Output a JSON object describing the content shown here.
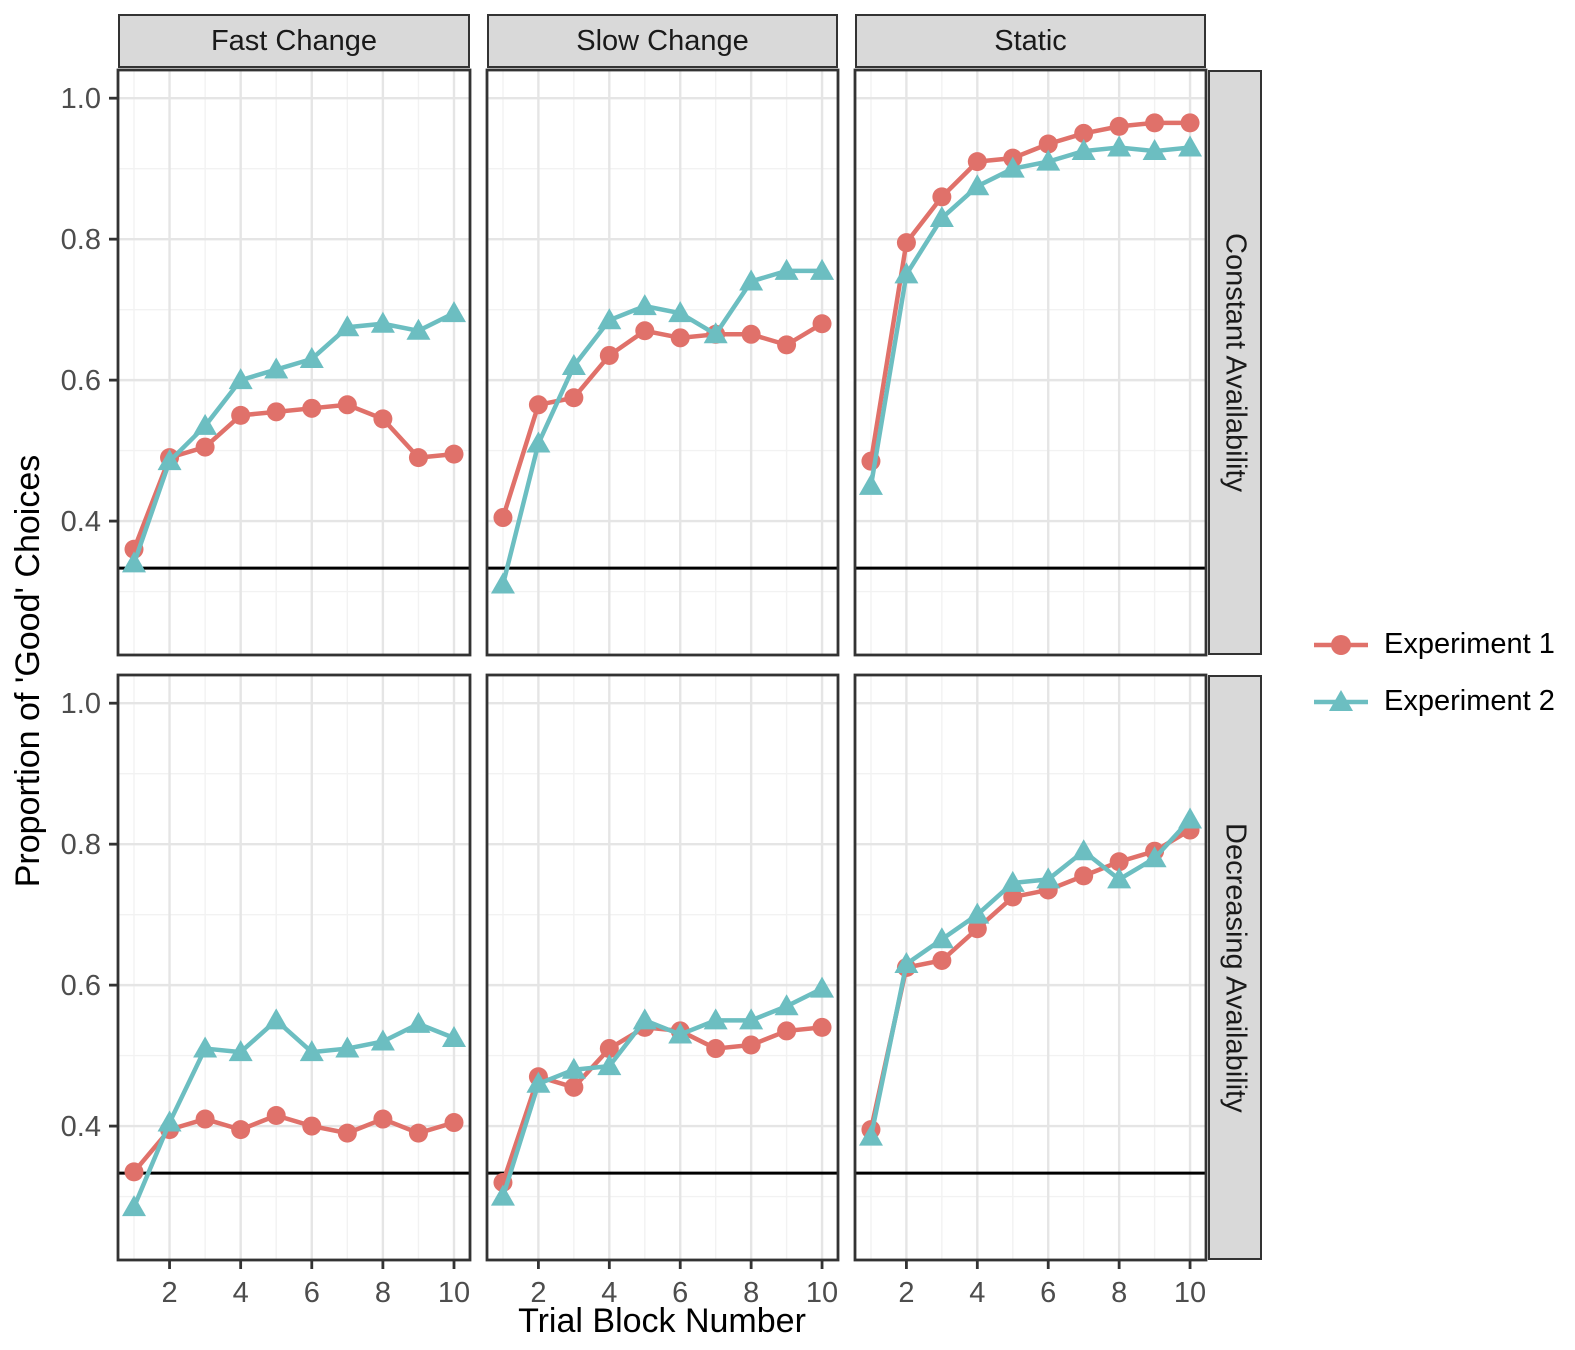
{
  "chart_data": {
    "type": "line",
    "title": "",
    "xlabel": "Trial Block Number",
    "ylabel": "Proportion of 'Good' Choices",
    "x": [
      1,
      2,
      3,
      4,
      5,
      6,
      7,
      8,
      9,
      10
    ],
    "xlim": [
      0.55,
      10.45
    ],
    "ylim": [
      0.21,
      1.04
    ],
    "x_major_ticks": [
      2,
      4,
      6,
      8,
      10
    ],
    "x_tick_labels": [
      "2",
      "4",
      "6",
      "8",
      "10"
    ],
    "x_minor_gridlines": [
      1,
      3,
      5,
      7,
      9
    ],
    "y_major_ticks": [
      1.0,
      0.8,
      0.6,
      0.4
    ],
    "y_tick_labels": [
      "1.0",
      "0.8",
      "0.6",
      "0.4"
    ],
    "y_minor_gridlines": [
      0.9,
      0.7,
      0.5,
      0.3
    ],
    "grid": true,
    "reference_line_y": 0.3333,
    "reference_line_color": "#000000",
    "legend_position": "right",
    "facet_columns": [
      "Fast Change",
      "Slow Change",
      "Static"
    ],
    "facet_rows": [
      "Constant Availability",
      "Decreasing Availability"
    ],
    "series_meta": [
      {
        "name": "Experiment 1",
        "color": "#E0716A",
        "marker": "circle"
      },
      {
        "name": "Experiment 2",
        "color": "#6CBEC1",
        "marker": "triangle"
      }
    ],
    "panels": [
      {
        "row": "Constant Availability",
        "col": "Fast Change",
        "series": [
          {
            "name": "Experiment 1",
            "values": [
              0.36,
              0.49,
              0.505,
              0.55,
              0.555,
              0.56,
              0.565,
              0.545,
              0.49,
              0.495
            ]
          },
          {
            "name": "Experiment 2",
            "values": [
              0.34,
              0.485,
              0.535,
              0.6,
              0.615,
              0.63,
              0.675,
              0.68,
              0.67,
              0.695
            ]
          }
        ]
      },
      {
        "row": "Constant Availability",
        "col": "Slow Change",
        "series": [
          {
            "name": "Experiment 1",
            "values": [
              0.405,
              0.565,
              0.575,
              0.635,
              0.67,
              0.66,
              0.665,
              0.665,
              0.65,
              0.68
            ]
          },
          {
            "name": "Experiment 2",
            "values": [
              0.31,
              0.51,
              0.62,
              0.685,
              0.705,
              0.695,
              0.665,
              0.74,
              0.755,
              0.755
            ]
          }
        ]
      },
      {
        "row": "Constant Availability",
        "col": "Static",
        "series": [
          {
            "name": "Experiment 1",
            "values": [
              0.485,
              0.795,
              0.86,
              0.91,
              0.915,
              0.935,
              0.95,
              0.96,
              0.965,
              0.965
            ]
          },
          {
            "name": "Experiment 2",
            "values": [
              0.45,
              0.75,
              0.83,
              0.875,
              0.9,
              0.91,
              0.925,
              0.93,
              0.925,
              0.93
            ]
          }
        ]
      },
      {
        "row": "Decreasing Availability",
        "col": "Fast Change",
        "series": [
          {
            "name": "Experiment 1",
            "values": [
              0.335,
              0.395,
              0.41,
              0.395,
              0.415,
              0.4,
              0.39,
              0.41,
              0.39,
              0.405
            ]
          },
          {
            "name": "Experiment 2",
            "values": [
              0.285,
              0.405,
              0.51,
              0.505,
              0.55,
              0.505,
              0.51,
              0.52,
              0.545,
              0.525
            ]
          }
        ]
      },
      {
        "row": "Decreasing Availability",
        "col": "Slow Change",
        "series": [
          {
            "name": "Experiment 1",
            "values": [
              0.32,
              0.47,
              0.455,
              0.51,
              0.54,
              0.535,
              0.51,
              0.515,
              0.535,
              0.54
            ]
          },
          {
            "name": "Experiment 2",
            "values": [
              0.3,
              0.46,
              0.48,
              0.485,
              0.55,
              0.53,
              0.55,
              0.55,
              0.57,
              0.595
            ]
          }
        ]
      },
      {
        "row": "Decreasing Availability",
        "col": "Static",
        "series": [
          {
            "name": "Experiment 1",
            "values": [
              0.395,
              0.625,
              0.635,
              0.68,
              0.725,
              0.735,
              0.755,
              0.775,
              0.79,
              0.82
            ]
          },
          {
            "name": "Experiment 2",
            "values": [
              0.385,
              0.63,
              0.665,
              0.7,
              0.745,
              0.75,
              0.79,
              0.75,
              0.78,
              0.835
            ]
          }
        ]
      }
    ],
    "style": {
      "strip_fill": "#d9d9d9",
      "panel_border": "#333333",
      "major_grid": "#e5e5e5",
      "minor_grid": "#f2f2f2",
      "tick_label_color": "#4d4d4d"
    }
  }
}
